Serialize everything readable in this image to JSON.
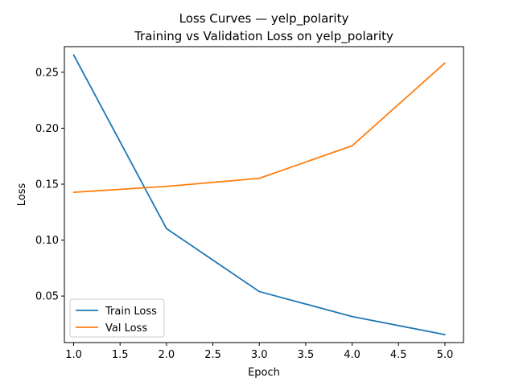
{
  "chart_data": {
    "type": "line",
    "title": "Loss Curves — yelp_polarity",
    "subtitle": "Training vs Validation Loss on yelp_polarity",
    "xlabel": "Epoch",
    "ylabel": "Loss",
    "x": [
      1.0,
      2.0,
      3.0,
      4.0,
      5.0
    ],
    "xlim": [
      0.9,
      5.2
    ],
    "ylim": [
      0.0084,
      0.2729
    ],
    "xticks": [
      "1.0",
      "1.5",
      "2.0",
      "2.5",
      "3.0",
      "3.5",
      "4.0",
      "4.5",
      "5.0"
    ],
    "yticks": [
      "0.05",
      "0.10",
      "0.15",
      "0.20",
      "0.25"
    ],
    "grid": false,
    "legend_position": "bottom-left",
    "series": [
      {
        "name": "Train Loss",
        "color": "#1f77b4",
        "values": [
          0.2655,
          0.1103,
          0.054,
          0.0317,
          0.0155
        ]
      },
      {
        "name": "Val Loss",
        "color": "#ff7f0e",
        "values": [
          0.1427,
          0.148,
          0.1552,
          0.1843,
          0.2583
        ]
      }
    ]
  }
}
